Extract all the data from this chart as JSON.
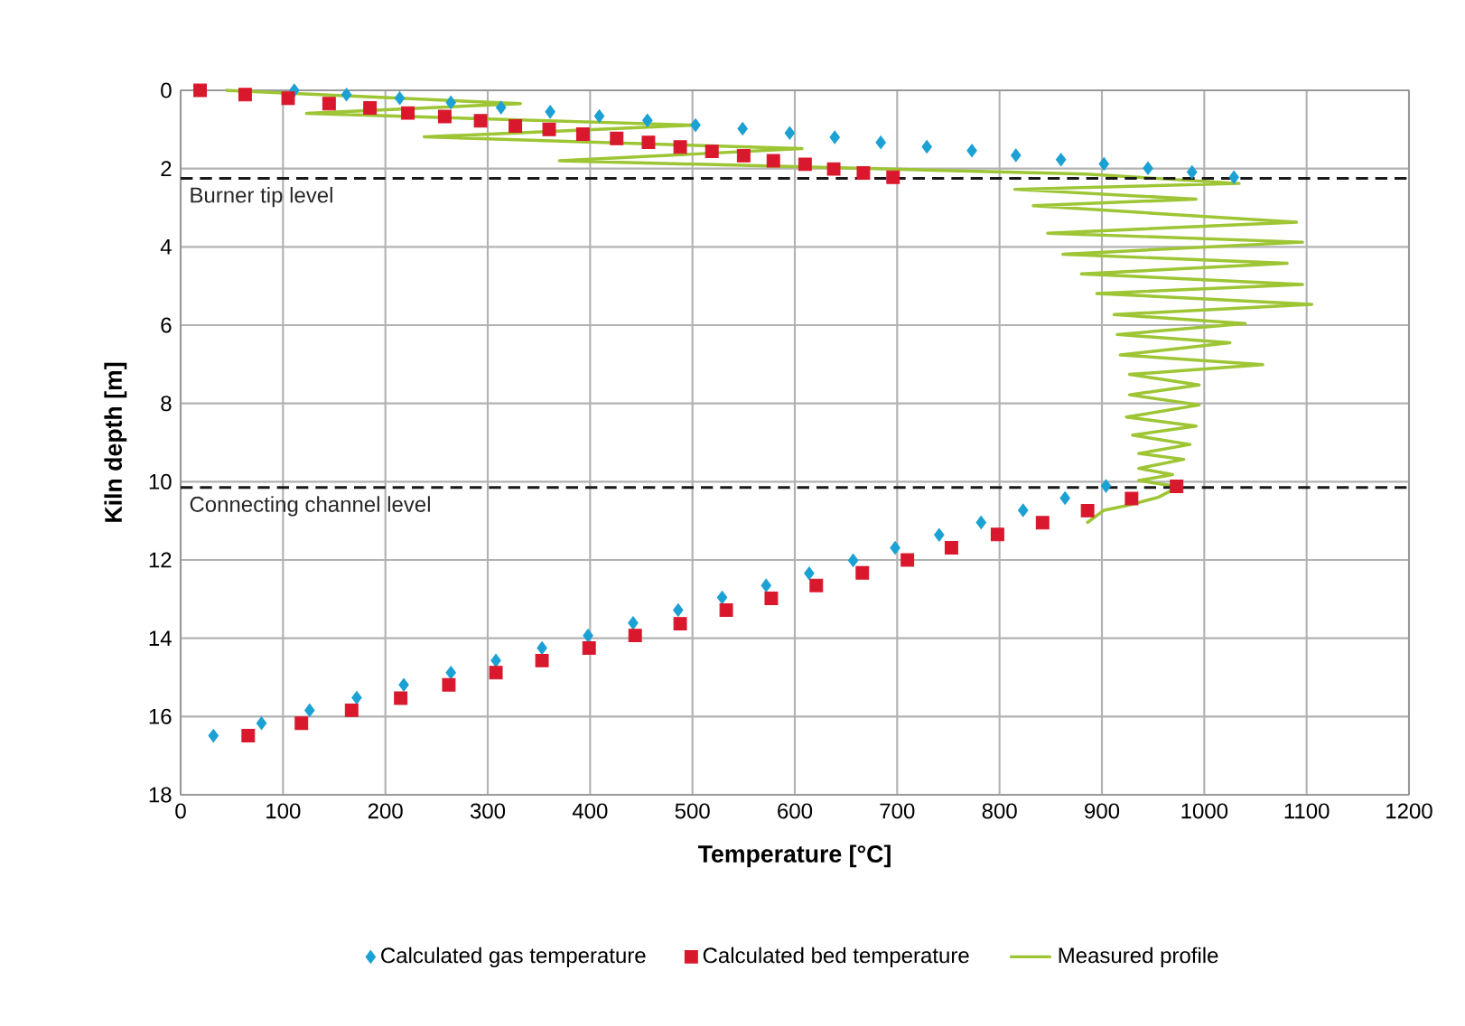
{
  "chart_data": {
    "type": "scatter",
    "xlabel": "Temperature [°C]",
    "ylabel": "Kiln depth  [m]",
    "xlim": [
      0,
      1200
    ],
    "xticks": [
      0,
      100,
      200,
      300,
      400,
      500,
      600,
      700,
      800,
      900,
      1000,
      1100,
      1200
    ],
    "ylim": [
      18,
      0
    ],
    "yticks": [
      0,
      2,
      4,
      6,
      8,
      10,
      12,
      14,
      16,
      18
    ],
    "grid": true,
    "legend": "bottom",
    "ref_lines": [
      {
        "axis": "y",
        "value": 2.25,
        "label": "Burner tip level",
        "color": "#1a1a1a",
        "line_style": "dashed"
      },
      {
        "axis": "y",
        "value": 10.15,
        "label": "Connecting channel level",
        "color": "#1a1a1a",
        "line_style": "dashed"
      }
    ],
    "series": [
      {
        "name": "Calculated gas temperature",
        "marker": "diamond",
        "color": "#1ba1d3",
        "x": [
          111,
          162,
          214,
          264,
          313,
          361,
          409,
          456,
          503,
          549,
          595,
          639,
          684,
          729,
          773,
          816,
          860,
          902,
          945,
          988,
          1029,
          904,
          864,
          823,
          782,
          741,
          698,
          657,
          614,
          572,
          529,
          486,
          442,
          398,
          353,
          308,
          264,
          218,
          172,
          126,
          79,
          32
        ],
        "values": [
          0.0,
          0.11,
          0.2,
          0.31,
          0.44,
          0.55,
          0.66,
          0.77,
          0.89,
          0.98,
          1.09,
          1.2,
          1.33,
          1.44,
          1.54,
          1.66,
          1.77,
          1.88,
          1.99,
          2.09,
          2.22,
          10.11,
          10.42,
          10.73,
          11.04,
          11.36,
          11.69,
          12.01,
          12.34,
          12.65,
          12.96,
          13.28,
          13.61,
          13.93,
          14.25,
          14.57,
          14.88,
          15.19,
          15.52,
          15.84,
          16.17,
          16.49
        ]
      },
      {
        "name": "Calculated bed temperature",
        "marker": "square",
        "color": "#d9182d",
        "x": [
          19,
          63,
          105,
          145,
          185,
          222,
          258,
          293,
          327,
          360,
          393,
          426,
          457,
          488,
          519,
          550,
          579,
          610,
          638,
          667,
          696,
          973,
          929,
          886,
          842,
          798,
          753,
          710,
          666,
          621,
          577,
          533,
          488,
          444,
          399,
          353,
          308,
          262,
          215,
          167,
          118,
          66
        ],
        "values": [
          0.0,
          0.11,
          0.2,
          0.34,
          0.45,
          0.58,
          0.67,
          0.78,
          0.91,
          1.0,
          1.12,
          1.23,
          1.33,
          1.45,
          1.56,
          1.67,
          1.8,
          1.89,
          2.01,
          2.11,
          2.22,
          10.12,
          10.43,
          10.74,
          11.05,
          11.35,
          11.69,
          12.0,
          12.33,
          12.65,
          12.98,
          13.28,
          13.63,
          13.93,
          14.25,
          14.57,
          14.88,
          15.19,
          15.53,
          15.84,
          16.17,
          16.49
        ]
      },
      {
        "name": "Measured profile",
        "type": "line",
        "marker": "none",
        "color": "#9dc534",
        "x": [
          44,
          332,
          123,
          503,
          238,
          607,
          370,
          885,
          1034,
          815,
          992,
          833,
          1090,
          847,
          1096,
          862,
          1081,
          880,
          1096,
          895,
          1105,
          912,
          1040,
          915,
          1025,
          918,
          1057,
          927,
          995,
          927,
          995,
          924,
          992,
          930,
          986,
          936,
          980,
          936,
          969,
          936,
          975,
          955,
          926,
          902,
          885
        ],
        "values": [
          0.0,
          0.34,
          0.59,
          0.89,
          1.19,
          1.49,
          1.8,
          2.14,
          2.38,
          2.53,
          2.78,
          2.95,
          3.37,
          3.65,
          3.88,
          4.19,
          4.42,
          4.69,
          4.96,
          5.19,
          5.47,
          5.73,
          5.96,
          6.24,
          6.45,
          6.76,
          7.01,
          7.26,
          7.53,
          7.78,
          8.04,
          8.35,
          8.58,
          8.81,
          9.05,
          9.28,
          9.43,
          9.66,
          9.82,
          9.97,
          10.13,
          10.4,
          10.6,
          10.73,
          11.06
        ]
      }
    ]
  }
}
